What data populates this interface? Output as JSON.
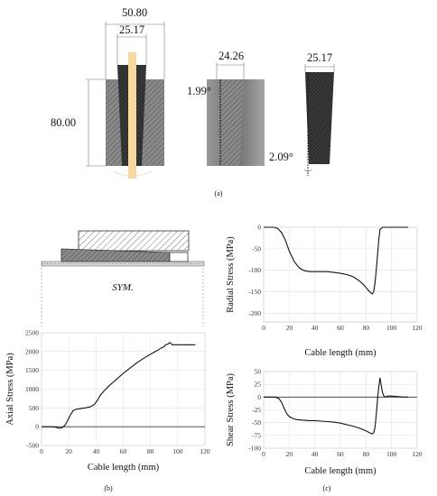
{
  "captions": {
    "a": "(a)",
    "b": "(b)",
    "c": "(c)"
  },
  "panel_a": {
    "dims": {
      "outer_width": "50.80",
      "inner_width_1": "25.17",
      "height": "80.00",
      "angle_1": "1.99°",
      "width_2": "24.26",
      "width_3": "25.17",
      "angle_2": "2.09°"
    }
  },
  "panel_b_schematic": {
    "sym_label": "SYM."
  },
  "chart_data": [
    {
      "type": "line",
      "name": "axial",
      "xlabel": "Cable length (mm)",
      "ylabel": "Axial Stress (MPa)",
      "xlim": [
        0,
        120
      ],
      "ylim": [
        -500,
        2500
      ],
      "xticks": [
        0,
        20,
        40,
        60,
        80,
        100,
        120
      ],
      "yticks": [
        -500,
        0,
        500,
        1000,
        1500,
        2000,
        2500
      ],
      "grid": true,
      "x": [
        0,
        6,
        10,
        13,
        15,
        17,
        19,
        21,
        23,
        25,
        28,
        32,
        36,
        39,
        41,
        43,
        46,
        50,
        55,
        60,
        65,
        70,
        75,
        80,
        84,
        86,
        88,
        90,
        91,
        93,
        94,
        95,
        96,
        100,
        105,
        110,
        113
      ],
      "y": [
        0,
        0,
        -10,
        -40,
        -30,
        30,
        150,
        300,
        420,
        460,
        480,
        500,
        530,
        600,
        700,
        830,
        960,
        1100,
        1260,
        1420,
        1560,
        1700,
        1820,
        1930,
        2010,
        2050,
        2100,
        2130,
        2180,
        2200,
        2240,
        2220,
        2180,
        2180,
        2180,
        2180,
        2180
      ]
    },
    {
      "type": "line",
      "name": "radial",
      "xlabel": "Cable length (mm)",
      "ylabel": "Radial Stress (MPa)",
      "xlim": [
        0,
        120
      ],
      "ylim": [
        -220,
        0
      ],
      "xticks": [
        0,
        20,
        40,
        60,
        80,
        100,
        120
      ],
      "yticks": [
        0,
        -50,
        -100,
        -150,
        -200
      ],
      "grid": true,
      "x": [
        0,
        8,
        11,
        14,
        17,
        20,
        24,
        28,
        32,
        36,
        40,
        45,
        50,
        55,
        60,
        65,
        70,
        75,
        78,
        80,
        82,
        84,
        85,
        86,
        87,
        88,
        89,
        90,
        91,
        93,
        95,
        100,
        105,
        110,
        113
      ],
      "y": [
        0,
        0,
        -3,
        -12,
        -30,
        -55,
        -80,
        -95,
        -101,
        -103,
        -103,
        -103,
        -103,
        -105,
        -107,
        -110,
        -115,
        -125,
        -133,
        -140,
        -147,
        -153,
        -155,
        -150,
        -130,
        -100,
        -65,
        -30,
        -5,
        0,
        0,
        0,
        0,
        0,
        0
      ]
    },
    {
      "type": "line",
      "name": "shear",
      "xlabel": "Cable length (mm)",
      "ylabel": "Shear Stress (MPa)",
      "xlim": [
        0,
        120
      ],
      "ylim": [
        -100,
        50
      ],
      "xticks": [
        0,
        20,
        40,
        60,
        80,
        100,
        120
      ],
      "yticks": [
        50,
        25,
        0,
        -25,
        -50,
        -75,
        -100
      ],
      "grid": true,
      "x": [
        0,
        9,
        12,
        14,
        16,
        18,
        20,
        23,
        26,
        30,
        35,
        40,
        45,
        50,
        55,
        60,
        65,
        70,
        75,
        80,
        83,
        85,
        86,
        87,
        88,
        89,
        90,
        91,
        92,
        93,
        94,
        95,
        97,
        100,
        105,
        110,
        113
      ],
      "y": [
        0,
        0,
        -3,
        -10,
        -22,
        -32,
        -38,
        -42,
        -44,
        -45,
        -46,
        -46,
        -47,
        -48,
        -49,
        -51,
        -54,
        -57,
        -61,
        -66,
        -70,
        -72,
        -70,
        -60,
        -35,
        -5,
        20,
        38,
        22,
        8,
        2,
        0,
        2,
        2,
        1,
        0,
        0
      ]
    }
  ]
}
